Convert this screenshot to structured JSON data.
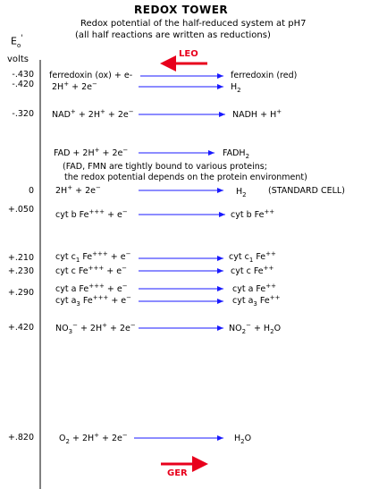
{
  "header": {
    "title": "REDOX TOWER",
    "subtitle_1": "Redox potential of the half-reduced system at pH7",
    "subtitle_2": "(all half reactions are written as reductions)",
    "axis_symbol": "E",
    "axis_symbol_sub": "o",
    "axis_symbol_prime": "'",
    "axis_unit": "volts"
  },
  "labels": {
    "leo": "LEO",
    "ger": "GER",
    "red_color": "#e8001c",
    "arrow_color": "#1a1aff"
  },
  "ticks": [
    "-.430",
    "-.420",
    "-.320",
    "0",
    "+.050",
    "+.210",
    "+.230",
    "+.290",
    "+.420",
    "+.820"
  ],
  "reactions": {
    "ferredoxin": {
      "left": "ferredoxin (ox) + e-",
      "right": "ferredoxin (red)"
    },
    "h2_a": {
      "l1": "2H",
      "l2": "+",
      "l3": " + 2e",
      "l4": "−",
      "r1": "H",
      "r2": "2"
    },
    "nad": {
      "l1": "NAD",
      "l2": "+",
      "l3": " + 2H",
      "l4": "+",
      "l5": " + 2e",
      "l6": "−",
      "r1": "NADH + H",
      "r2": "+"
    },
    "fad": {
      "l1": "FAD  + 2H",
      "l2": "+",
      "l3": " + 2e",
      "l4": "−",
      "r1": "FADH",
      "r2": "2"
    },
    "h2_b": {
      "l1": "2H",
      "l2": "+",
      "l3": " + 2e",
      "l4": "−",
      "r1": "H",
      "r2": "2",
      "note": "(STANDARD CELL)"
    },
    "cytb": {
      "l1": "cyt b Fe",
      "l2": "+++",
      "l3": " + e",
      "l4": "−",
      "r1": "cyt b Fe",
      "r2": "++"
    },
    "cytc1": {
      "l1": "cyt c",
      "l2": "1",
      "l3": " Fe",
      "l4": "+++",
      "l5": " + e",
      "l6": "−",
      "r1": "cyt c",
      "r2": "1",
      "r3": " Fe",
      "r4": "++"
    },
    "cytc": {
      "l1": "cyt c Fe",
      "l2": "+++",
      "l3": " + e",
      "l4": "−",
      "r1": "cyt c Fe",
      "r2": "++"
    },
    "cyta": {
      "l1": "cyt a Fe",
      "l2": "+++",
      "l3": " + e",
      "l4": "−",
      "r1": "cyt a Fe",
      "r2": "++"
    },
    "cyta3": {
      "l1": "cyt a",
      "l2": "3",
      "l3": " Fe",
      "l4": "+++",
      "l5": " + e",
      "l6": "−",
      "r1": "cyt a",
      "r2": "3",
      "r3": " Fe",
      "r4": "++"
    },
    "no3": {
      "l1": "NO",
      "l2": "3",
      "l3": "−",
      "l4": " + 2H",
      "l5": "+",
      "l6": " + 2e",
      "l7": "−",
      "r1": "NO",
      "r2": "2",
      "r3": "−",
      "r4": " + H",
      "r5": "2",
      "r6": "O"
    },
    "o2": {
      "l1": "O",
      "l2": "2",
      "l3": " + 2H",
      "l4": "+",
      "l5": " + 2e",
      "l6": "−",
      "r1": "H",
      "r2": "2",
      "r3": "O"
    }
  },
  "notes": {
    "fad_line_1": "(FAD, FMN are tightly bound to various proteins;",
    "fad_line_2": "the redox potential depends on the protein environment)"
  }
}
